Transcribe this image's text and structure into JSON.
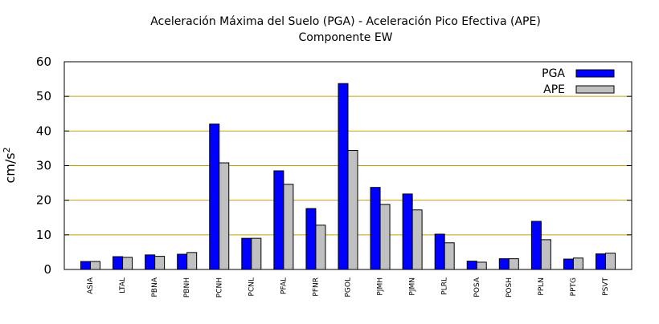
{
  "chart_data": {
    "type": "bar",
    "title_line1": "Aceleración Máxima del Suelo (PGA) -  Aceleración Pico Efectiva (APE)",
    "title_line2": "Componente EW",
    "xlabel": "",
    "ylabel_base": "cm/s",
    "ylabel_exp": "2",
    "ylim": [
      0,
      60
    ],
    "yticks": [
      0,
      10,
      20,
      30,
      40,
      50,
      60
    ],
    "grid": "horizontal",
    "legend_position": "top-right",
    "categories": [
      "ASIA",
      "LTAL",
      "PBNA",
      "PBNH",
      "PCNH",
      "PCNL",
      "PFAL",
      "PFNR",
      "PGOL",
      "PJMH",
      "PJMN",
      "PLRL",
      "POSA",
      "POSH",
      "PPLN",
      "PPTG",
      "PSVT"
    ],
    "series": [
      {
        "name": "PGA",
        "color": "#0000ff",
        "values": [
          2.3,
          3.7,
          4.2,
          4.4,
          42.0,
          9.0,
          28.5,
          17.6,
          53.7,
          23.7,
          21.8,
          10.2,
          2.4,
          3.1,
          13.9,
          3.0,
          4.5
        ]
      },
      {
        "name": "APE",
        "color": "#c0c0c0",
        "values": [
          2.3,
          3.5,
          3.8,
          4.9,
          30.8,
          9.0,
          24.6,
          12.8,
          34.4,
          18.8,
          17.2,
          7.7,
          2.1,
          3.1,
          8.6,
          3.3,
          4.7
        ]
      }
    ],
    "colors": {
      "grid": "#c8a000",
      "axis": "#000000",
      "bar_stroke": "#000000"
    }
  }
}
